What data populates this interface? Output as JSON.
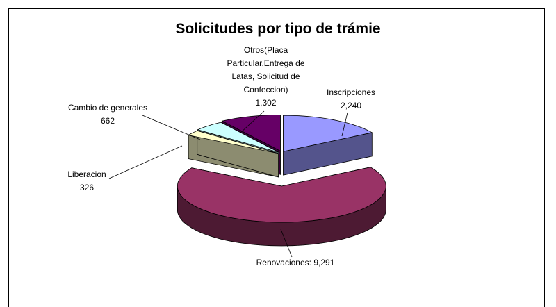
{
  "chart_data": {
    "type": "pie3d",
    "title": "Solicitudes por tipo de trámie",
    "categories": [
      "Inscripciones",
      "Renovaciones:",
      "Liberacion",
      "Cambio de generales",
      "Otros(Placa Particular,Entrega de Latas, Solicitud de Confeccion)"
    ],
    "values": [
      2240,
      9291,
      326,
      662,
      1302
    ],
    "value_labels": [
      "2,240",
      "9,291",
      "326",
      "662",
      "1,302"
    ],
    "colors": [
      "#9999ff",
      "#993366",
      "#ffffcc",
      "#ccffff",
      "#660066"
    ]
  }
}
